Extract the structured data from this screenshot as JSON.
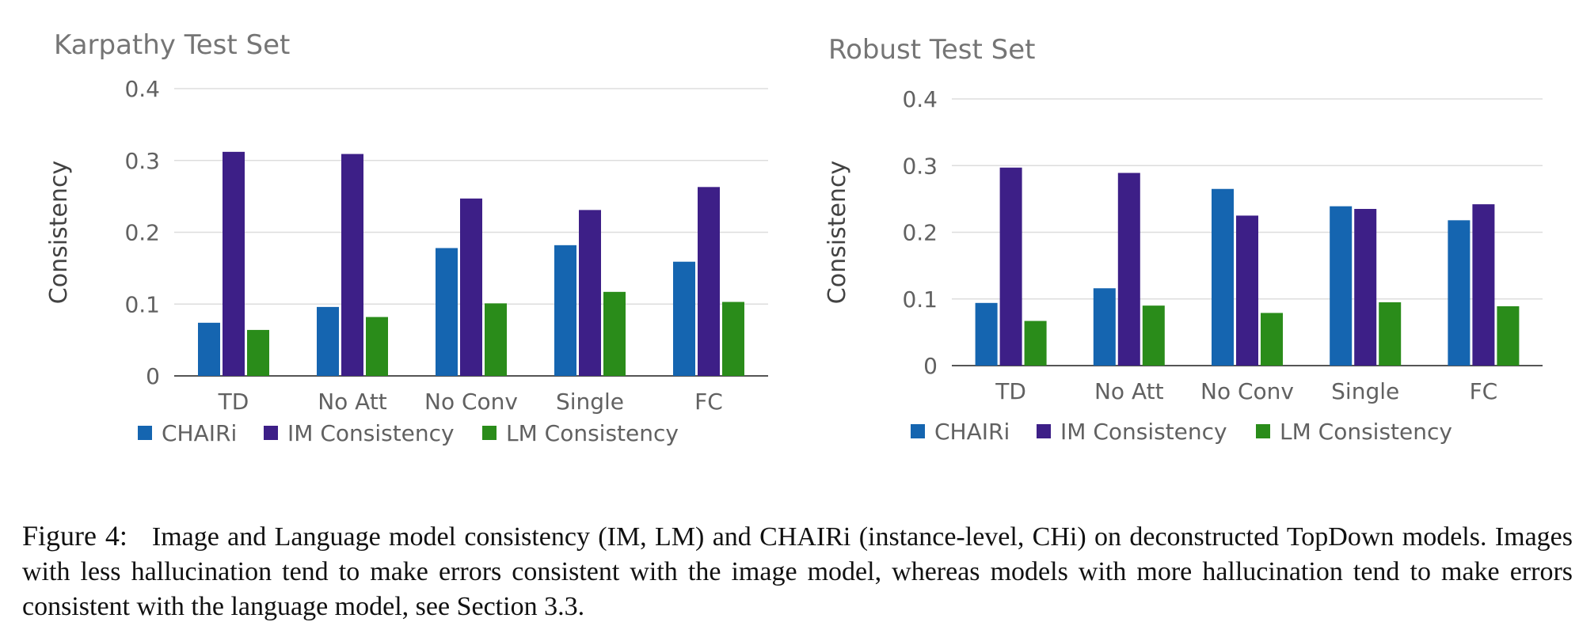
{
  "chart_data": [
    {
      "type": "bar",
      "title": "Karpathy Test Set",
      "ylabel": "Consistency",
      "xlabel": "",
      "ylim": [
        0,
        0.4
      ],
      "yticks": [
        "0",
        "0.1",
        "0.2",
        "0.3",
        "0.4"
      ],
      "grid": true,
      "legend": "bottom",
      "categories": [
        "TD",
        "No Att",
        "No Conv",
        "Single",
        "FC"
      ],
      "series": [
        {
          "name": "CHAIRi",
          "color": "#1565b0",
          "values": [
            0.074,
            0.096,
            0.178,
            0.182,
            0.159
          ]
        },
        {
          "name": "IM Consistency",
          "color": "#3d1f87",
          "values": [
            0.312,
            0.309,
            0.247,
            0.231,
            0.263
          ]
        },
        {
          "name": "LM Consistency",
          "color": "#2a8c1a",
          "values": [
            0.064,
            0.082,
            0.101,
            0.117,
            0.103
          ]
        }
      ]
    },
    {
      "type": "bar",
      "title": "Robust Test Set",
      "ylabel": "Consistency",
      "xlabel": "",
      "ylim": [
        0,
        0.4
      ],
      "yticks": [
        "0",
        "0.1",
        "0.2",
        "0.3",
        "0.4"
      ],
      "grid": true,
      "legend": "bottom",
      "categories": [
        "TD",
        "No Att",
        "No Conv",
        "Single",
        "FC"
      ],
      "series": [
        {
          "name": "CHAIRi",
          "color": "#1565b0",
          "values": [
            0.094,
            0.116,
            0.265,
            0.239,
            0.218
          ]
        },
        {
          "name": "IM Consistency",
          "color": "#3d1f87",
          "values": [
            0.297,
            0.289,
            0.225,
            0.235,
            0.242
          ]
        },
        {
          "name": "LM Consistency",
          "color": "#2a8c1a",
          "values": [
            0.067,
            0.09,
            0.079,
            0.095,
            0.089
          ]
        }
      ]
    }
  ],
  "caption": {
    "label": "Figure 4:",
    "text": "Image and Language model consistency (IM, LM) and CHAIRi (instance-level, CHi) on deconstructed TopDown models. Images with less hallucination tend to make errors consistent with the image model, whereas models with more hallucination tend to make errors consistent with the language model, see Section 3.3."
  }
}
